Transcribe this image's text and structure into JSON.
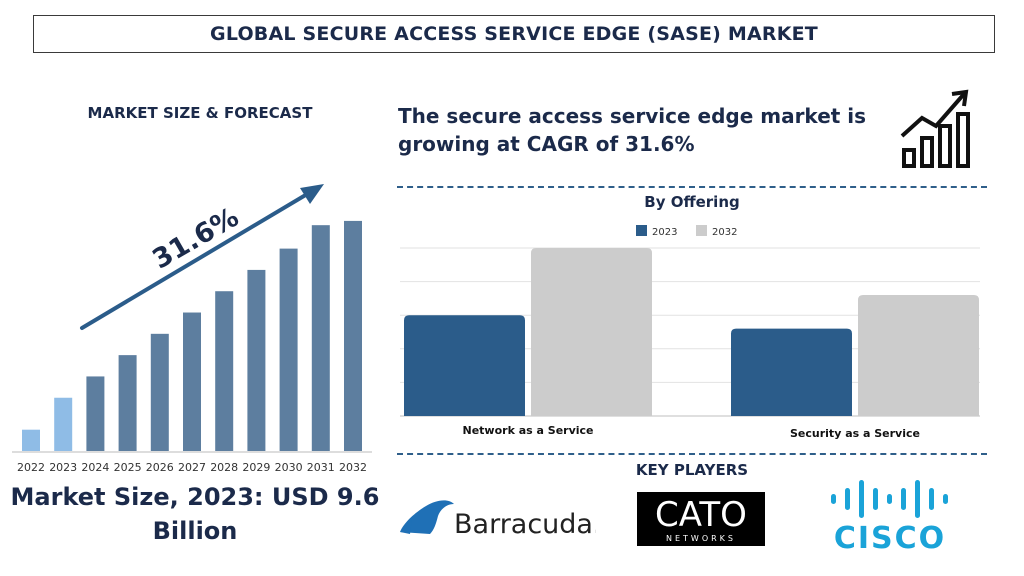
{
  "header": {
    "title": "GLOBAL SECURE ACCESS SERVICE EDGE (SASE) MARKET"
  },
  "left_panel": {
    "heading": "MARKET SIZE & FORECAST",
    "market_size_text": "Market Size, 2023: USD 9.6 Billion"
  },
  "right_panel": {
    "cagr_text": "The secure access service edge market is growing at CAGR of 31.6%",
    "offering_title": "By Offering",
    "key_players_title": "KEY PLAYERS"
  },
  "logos": [
    {
      "name": "Barracuda",
      "text": "Barracuda."
    },
    {
      "name": "CATO",
      "text": "CATO",
      "sub": "NETWORKS"
    },
    {
      "name": "Cisco",
      "text": "CISCO"
    }
  ],
  "icons": [
    "growth-chart-icon",
    "trend-arrow"
  ],
  "chart_data": [
    {
      "type": "bar",
      "categories": [
        "2022",
        "2023",
        "2024",
        "2025",
        "2026",
        "2027",
        "2028",
        "2029",
        "2030",
        "2031",
        "2032"
      ],
      "values": [
        1,
        2.5,
        3.5,
        4.5,
        5.5,
        6.5,
        7.5,
        8.5,
        9.5,
        10.6,
        10.8
      ],
      "annotation": "31.6%",
      "ylim": [
        0,
        11.5
      ],
      "colors": {
        "2022": "#8fbce6",
        "2023": "#8fbce6",
        "others": "#5d7e9f"
      },
      "grid": false
    },
    {
      "type": "bar",
      "title": "By Offering",
      "categories": [
        "Network as a Service",
        "Security as a Service"
      ],
      "series": [
        {
          "name": "2023",
          "color": "#2b5c8a",
          "values": [
            3.0,
            2.6
          ]
        },
        {
          "name": "2032",
          "color": "#cccccc",
          "values": [
            5.0,
            3.6
          ]
        }
      ],
      "ylim": [
        0,
        5.0
      ],
      "grid": true,
      "legend": "top-center"
    }
  ]
}
